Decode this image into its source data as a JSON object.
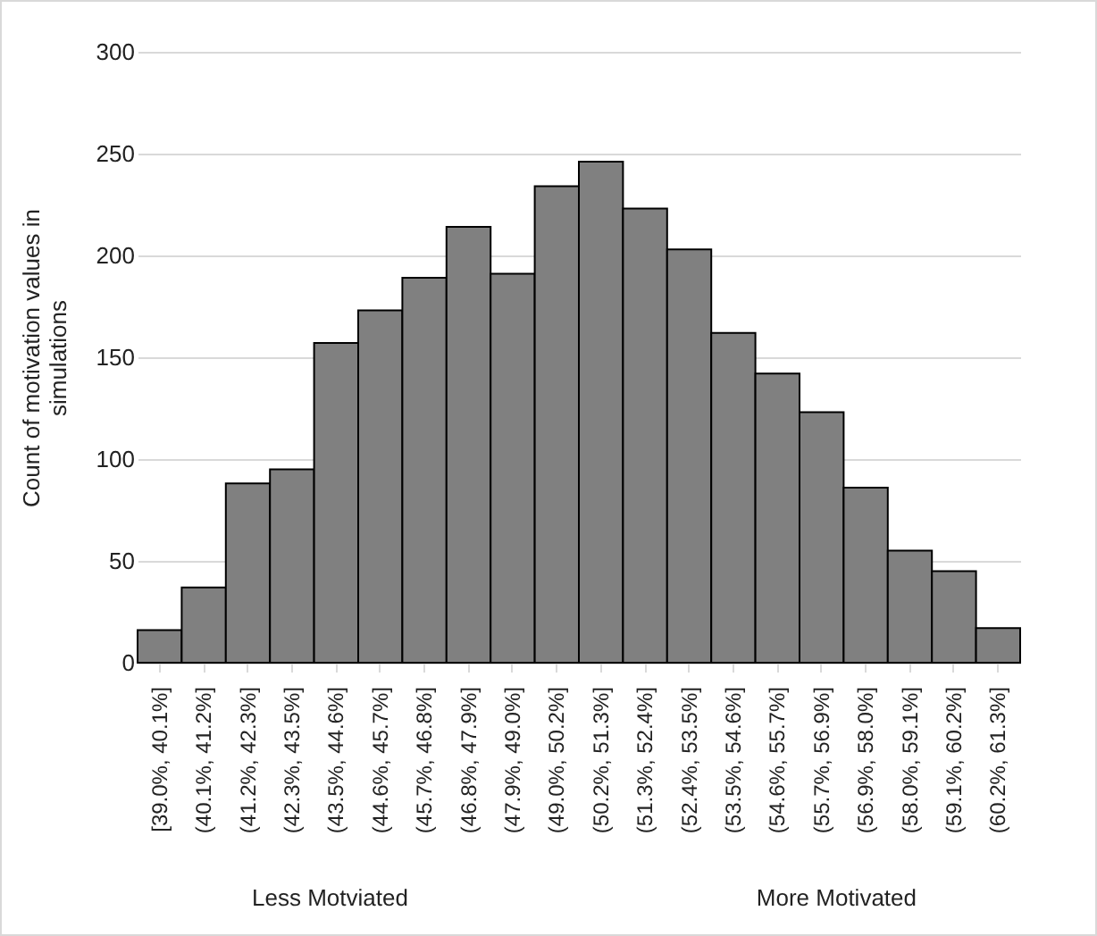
{
  "chart_data": {
    "type": "bar",
    "ylabel": "Count of motivation values in simulations",
    "categories": [
      "[39.0%, 40.1%]",
      "(40.1%, 41.2%]",
      "(41.2%, 42.3%]",
      "(42.3%, 43.5%]",
      "(43.5%, 44.6%]",
      "(44.6%, 45.7%]",
      "(45.7%, 46.8%]",
      "(46.8%, 47.9%]",
      "(47.9%, 49.0%]",
      "(49.0%, 50.2%]",
      "(50.2%, 51.3%]",
      "(51.3%, 52.4%]",
      "(52.4%, 53.5%]",
      "(53.5%, 54.6%]",
      "(54.6%, 55.7%]",
      "(55.7%, 56.9%]",
      "(56.9%, 58.0%]",
      "(58.0%, 59.1%]",
      "(59.1%, 60.2%]",
      "(60.2%, 61.3%]"
    ],
    "values": [
      16,
      37,
      88,
      95,
      157,
      173,
      189,
      214,
      191,
      234,
      246,
      223,
      203,
      162,
      142,
      123,
      86,
      55,
      45,
      17
    ],
    "color": "#808080",
    "ylim": [
      0,
      300
    ],
    "yticks": [
      0,
      50,
      100,
      150,
      200,
      250,
      300
    ],
    "grid": "y",
    "annotations": [
      "Less Motviated",
      "More Motivated"
    ]
  }
}
